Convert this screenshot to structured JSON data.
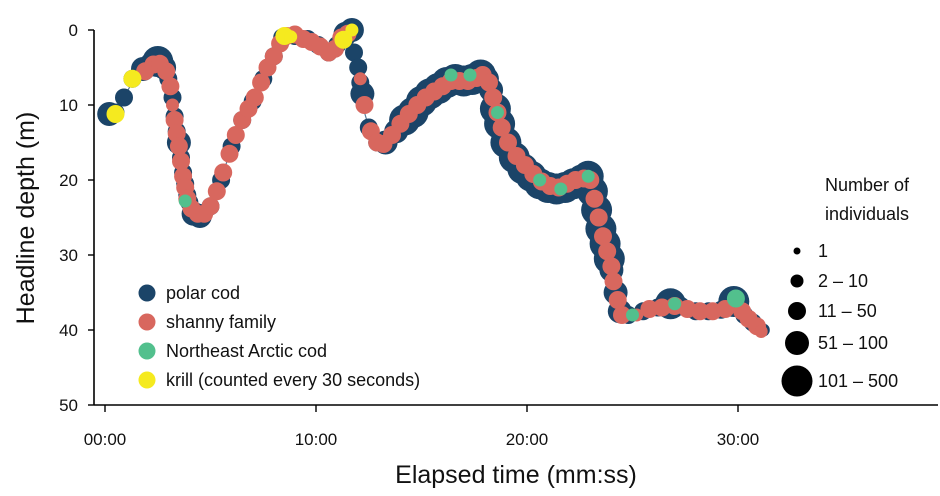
{
  "chart_data": {
    "type": "scatter",
    "xlabel": "Elapsed time (mm:ss)",
    "ylabel": "Headline depth (m)",
    "xlim_minutes": [
      0,
      40
    ],
    "ylim": [
      0,
      50
    ],
    "y_inverted": true,
    "x_ticks": [
      {
        "minutes": 0,
        "label": "00:00"
      },
      {
        "minutes": 10,
        "label": "10:00"
      },
      {
        "minutes": 20,
        "label": "20:00"
      },
      {
        "minutes": 30,
        "label": "30:00"
      }
    ],
    "y_ticks": [
      {
        "value": 0,
        "label": "0"
      },
      {
        "value": 10,
        "label": "10"
      },
      {
        "value": 20,
        "label": "20"
      },
      {
        "value": 30,
        "label": "30"
      },
      {
        "value": 40,
        "label": "40"
      },
      {
        "value": 50,
        "label": "50"
      }
    ],
    "legend": {
      "placement": "bottom-left",
      "entries": [
        {
          "label": "polar cod",
          "color": "#1b4468"
        },
        {
          "label": "shanny family",
          "color": "#d8675e"
        },
        {
          "label": "Northeast Arctic cod",
          "color": "#52c08d"
        },
        {
          "label": "krill (counted every 30 seconds)",
          "color": "#f5ea1f"
        }
      ]
    },
    "size_legend": {
      "title_lines": [
        "Number of",
        "individuals"
      ],
      "placement": "right",
      "entries": [
        {
          "label": "1",
          "size_class": 1
        },
        {
          "label": "2 – 10",
          "size_class": 2
        },
        {
          "label": "11 – 50",
          "size_class": 3
        },
        {
          "label": "51 – 100",
          "size_class": 4
        },
        {
          "label": "101 –  500",
          "size_class": 5
        }
      ]
    },
    "depth_track": [
      [
        0.3,
        11.2
      ],
      [
        0.6,
        11.2
      ],
      [
        1.0,
        8.5
      ],
      [
        1.5,
        5.8
      ],
      [
        2.0,
        4.6
      ],
      [
        2.6,
        4.2
      ],
      [
        3.0,
        6.5
      ],
      [
        3.3,
        11.0
      ],
      [
        3.6,
        17.5
      ],
      [
        3.9,
        22.0
      ],
      [
        4.2,
        24.5
      ],
      [
        4.6,
        24.5
      ],
      [
        5.0,
        23.5
      ],
      [
        5.5,
        20.0
      ],
      [
        6.0,
        15.5
      ],
      [
        6.5,
        12.0
      ],
      [
        7.0,
        9.5
      ],
      [
        7.5,
        6.5
      ],
      [
        8.0,
        3.5
      ],
      [
        8.4,
        1.0
      ],
      [
        9.0,
        0.8
      ],
      [
        9.5,
        1.5
      ],
      [
        10.0,
        2.0
      ],
      [
        10.5,
        3.2
      ],
      [
        11.0,
        2.0
      ],
      [
        11.3,
        0.5
      ],
      [
        11.6,
        0.0
      ],
      [
        12.0,
        5.0
      ],
      [
        12.2,
        10.0
      ],
      [
        12.5,
        13.0
      ],
      [
        13.0,
        15.5
      ],
      [
        13.5,
        14.5
      ],
      [
        14.0,
        12.5
      ],
      [
        14.5,
        11.0
      ],
      [
        15.0,
        9.5
      ],
      [
        15.5,
        8.5
      ],
      [
        16.0,
        7.5
      ],
      [
        16.5,
        6.5
      ],
      [
        17.0,
        6.8
      ],
      [
        17.5,
        6.5
      ],
      [
        18.0,
        6.0
      ],
      [
        18.3,
        8.0
      ],
      [
        18.6,
        11.5
      ],
      [
        19.0,
        15.5
      ],
      [
        19.5,
        17.5
      ],
      [
        20.0,
        18.5
      ],
      [
        20.5,
        20.0
      ],
      [
        21.0,
        21.0
      ],
      [
        21.5,
        21.0
      ],
      [
        22.0,
        20.5
      ],
      [
        22.5,
        20.0
      ],
      [
        22.9,
        19.5
      ],
      [
        23.2,
        22.0
      ],
      [
        23.5,
        26.5
      ],
      [
        23.8,
        29.0
      ],
      [
        24.0,
        31.0
      ],
      [
        24.2,
        35.0
      ],
      [
        24.5,
        38.0
      ],
      [
        25.0,
        38.0
      ],
      [
        25.5,
        37.5
      ],
      [
        26.0,
        37.0
      ],
      [
        26.5,
        36.8
      ],
      [
        27.0,
        36.5
      ],
      [
        27.5,
        37.0
      ],
      [
        28.0,
        37.5
      ],
      [
        28.5,
        37.5
      ],
      [
        29.0,
        37.5
      ],
      [
        29.5,
        37.0
      ],
      [
        30.0,
        36.0
      ],
      [
        30.3,
        38.0
      ],
      [
        30.6,
        39.0
      ],
      [
        31.0,
        40.0
      ],
      [
        31.3,
        40.0
      ]
    ],
    "series": [
      {
        "name": "polar cod",
        "points": [
          [
            0.2,
            11.2,
            4
          ],
          [
            0.5,
            11.0,
            3
          ],
          [
            0.9,
            9.0,
            3
          ],
          [
            1.3,
            6.5,
            3
          ],
          [
            1.8,
            5.2,
            4
          ],
          [
            2.2,
            4.6,
            4
          ],
          [
            2.5,
            4.2,
            5
          ],
          [
            2.8,
            5.0,
            4
          ],
          [
            3.0,
            6.5,
            3
          ],
          [
            3.2,
            9.0,
            3
          ],
          [
            3.3,
            11.5,
            3
          ],
          [
            3.4,
            13.5,
            3
          ],
          [
            3.5,
            15.0,
            4
          ],
          [
            3.6,
            17.0,
            3
          ],
          [
            3.7,
            19.0,
            3
          ],
          [
            3.8,
            20.5,
            3
          ],
          [
            3.9,
            22.0,
            3
          ],
          [
            4.0,
            23.0,
            3
          ],
          [
            4.2,
            24.5,
            4
          ],
          [
            4.5,
            24.8,
            4
          ],
          [
            5.0,
            23.5,
            3
          ],
          [
            5.5,
            20.0,
            3
          ],
          [
            6.0,
            15.5,
            3
          ],
          [
            6.5,
            12.0,
            3
          ],
          [
            7.0,
            9.5,
            3
          ],
          [
            7.5,
            6.5,
            3
          ],
          [
            8.0,
            3.5,
            3
          ],
          [
            8.4,
            1.0,
            3
          ],
          [
            9.0,
            0.8,
            3
          ],
          [
            9.6,
            1.2,
            3
          ],
          [
            10.1,
            2.0,
            3
          ],
          [
            10.6,
            3.0,
            3
          ],
          [
            11.0,
            2.0,
            3
          ],
          [
            11.4,
            0.5,
            4
          ],
          [
            11.7,
            0.0,
            4
          ],
          [
            11.8,
            3.0,
            3
          ],
          [
            12.0,
            5.0,
            3
          ],
          [
            12.1,
            7.0,
            3
          ],
          [
            12.2,
            8.5,
            4
          ],
          [
            12.5,
            13.0,
            3
          ],
          [
            12.9,
            15.0,
            3
          ],
          [
            13.3,
            15.0,
            4
          ],
          [
            13.8,
            13.5,
            4
          ],
          [
            14.2,
            12.0,
            5
          ],
          [
            14.6,
            11.0,
            5
          ],
          [
            15.0,
            9.5,
            5
          ],
          [
            15.4,
            8.5,
            5
          ],
          [
            15.8,
            7.8,
            5
          ],
          [
            16.2,
            7.0,
            5
          ],
          [
            16.6,
            6.6,
            5
          ],
          [
            17.0,
            6.8,
            5
          ],
          [
            17.4,
            6.6,
            5
          ],
          [
            17.8,
            6.0,
            5
          ],
          [
            18.1,
            6.5,
            4
          ],
          [
            18.3,
            8.0,
            4
          ],
          [
            18.5,
            10.5,
            5
          ],
          [
            18.7,
            12.5,
            5
          ],
          [
            19.0,
            15.0,
            5
          ],
          [
            19.4,
            17.0,
            5
          ],
          [
            19.8,
            18.5,
            5
          ],
          [
            20.2,
            19.5,
            5
          ],
          [
            20.6,
            20.5,
            5
          ],
          [
            21.0,
            21.0,
            5
          ],
          [
            21.4,
            21.2,
            5
          ],
          [
            21.8,
            21.0,
            5
          ],
          [
            22.2,
            20.5,
            5
          ],
          [
            22.6,
            20.0,
            5
          ],
          [
            22.9,
            19.5,
            5
          ],
          [
            23.1,
            21.5,
            5
          ],
          [
            23.3,
            24.0,
            5
          ],
          [
            23.5,
            26.5,
            5
          ],
          [
            23.7,
            28.5,
            5
          ],
          [
            23.9,
            30.5,
            5
          ],
          [
            24.0,
            32.0,
            4
          ],
          [
            24.2,
            35.0,
            4
          ],
          [
            24.4,
            37.5,
            4
          ],
          [
            24.8,
            38.0,
            3
          ],
          [
            25.5,
            37.5,
            3
          ],
          [
            26.2,
            37.0,
            3
          ],
          [
            26.8,
            36.5,
            5
          ],
          [
            27.3,
            36.8,
            3
          ],
          [
            28.0,
            37.5,
            3
          ],
          [
            28.6,
            37.5,
            3
          ],
          [
            29.2,
            37.3,
            3
          ],
          [
            29.8,
            36.2,
            5
          ],
          [
            30.3,
            38.0,
            3
          ],
          [
            30.7,
            39.0,
            3
          ],
          [
            31.2,
            40.0,
            2
          ]
        ]
      },
      {
        "name": "shanny family",
        "points": [
          [
            1.9,
            5.5,
            3
          ],
          [
            2.3,
            4.6,
            3
          ],
          [
            2.6,
            4.5,
            3
          ],
          [
            2.9,
            5.5,
            3
          ],
          [
            3.1,
            7.5,
            3
          ],
          [
            3.2,
            10.0,
            2
          ],
          [
            3.3,
            12.0,
            3
          ],
          [
            3.4,
            13.8,
            3
          ],
          [
            3.5,
            15.5,
            3
          ],
          [
            3.6,
            17.5,
            3
          ],
          [
            3.7,
            19.5,
            3
          ],
          [
            3.8,
            21.0,
            3
          ],
          [
            3.9,
            22.5,
            3
          ],
          [
            4.1,
            23.8,
            3
          ],
          [
            4.4,
            24.5,
            3
          ],
          [
            4.7,
            24.5,
            3
          ],
          [
            5.0,
            23.5,
            3
          ],
          [
            5.3,
            21.5,
            3
          ],
          [
            5.6,
            19.0,
            3
          ],
          [
            5.9,
            16.5,
            3
          ],
          [
            6.2,
            14.0,
            3
          ],
          [
            6.5,
            12.0,
            3
          ],
          [
            6.8,
            10.5,
            3
          ],
          [
            7.1,
            9.0,
            3
          ],
          [
            7.4,
            7.0,
            3
          ],
          [
            7.7,
            5.0,
            3
          ],
          [
            8.0,
            3.5,
            3
          ],
          [
            8.3,
            1.8,
            3
          ],
          [
            8.6,
            0.8,
            3
          ],
          [
            9.0,
            0.6,
            3
          ],
          [
            9.4,
            1.2,
            3
          ],
          [
            9.8,
            1.6,
            3
          ],
          [
            10.2,
            2.2,
            3
          ],
          [
            10.6,
            3.0,
            3
          ],
          [
            10.9,
            2.5,
            3
          ],
          [
            11.2,
            1.0,
            3
          ],
          [
            11.5,
            0.5,
            3
          ],
          [
            12.1,
            6.5,
            2
          ],
          [
            12.3,
            10.0,
            3
          ],
          [
            12.6,
            13.5,
            3
          ],
          [
            12.9,
            15.0,
            3
          ],
          [
            13.2,
            15.2,
            3
          ],
          [
            13.6,
            14.0,
            3
          ],
          [
            14.0,
            12.5,
            3
          ],
          [
            14.4,
            11.2,
            3
          ],
          [
            14.8,
            10.0,
            3
          ],
          [
            15.2,
            9.0,
            3
          ],
          [
            15.6,
            8.2,
            3
          ],
          [
            16.0,
            7.5,
            3
          ],
          [
            16.4,
            6.8,
            3
          ],
          [
            16.8,
            6.8,
            3
          ],
          [
            17.2,
            6.8,
            3
          ],
          [
            17.6,
            6.4,
            3
          ],
          [
            17.9,
            6.0,
            3
          ],
          [
            18.2,
            7.0,
            3
          ],
          [
            18.4,
            9.0,
            3
          ],
          [
            18.6,
            11.0,
            3
          ],
          [
            18.8,
            13.0,
            3
          ],
          [
            19.1,
            15.0,
            3
          ],
          [
            19.5,
            16.8,
            3
          ],
          [
            19.9,
            18.0,
            3
          ],
          [
            20.3,
            19.2,
            3
          ],
          [
            20.7,
            20.2,
            3
          ],
          [
            21.1,
            20.8,
            3
          ],
          [
            21.5,
            21.0,
            3
          ],
          [
            21.9,
            20.5,
            3
          ],
          [
            22.3,
            20.0,
            3
          ],
          [
            22.7,
            19.8,
            3
          ],
          [
            23.0,
            20.0,
            3
          ],
          [
            23.2,
            22.5,
            3
          ],
          [
            23.4,
            25.0,
            3
          ],
          [
            23.6,
            27.5,
            3
          ],
          [
            23.8,
            29.5,
            3
          ],
          [
            24.0,
            31.5,
            3
          ],
          [
            24.1,
            33.5,
            3
          ],
          [
            24.3,
            36.0,
            3
          ],
          [
            24.5,
            38.0,
            3
          ],
          [
            25.2,
            38.0,
            2
          ],
          [
            25.8,
            37.2,
            3
          ],
          [
            26.4,
            37.0,
            3
          ],
          [
            27.0,
            36.8,
            3
          ],
          [
            27.6,
            37.2,
            3
          ],
          [
            28.2,
            37.5,
            3
          ],
          [
            28.8,
            37.5,
            3
          ],
          [
            29.4,
            37.2,
            3
          ],
          [
            30.2,
            37.5,
            3
          ],
          [
            30.5,
            38.5,
            3
          ],
          [
            30.9,
            39.5,
            3
          ],
          [
            31.1,
            40.2,
            2
          ]
        ]
      },
      {
        "name": "Northeast Arctic cod",
        "points": [
          [
            3.8,
            22.8,
            2
          ],
          [
            16.4,
            6.0,
            2
          ],
          [
            17.3,
            6.0,
            2
          ],
          [
            18.6,
            11.0,
            2
          ],
          [
            20.6,
            20.0,
            2
          ],
          [
            21.6,
            21.2,
            2
          ],
          [
            22.9,
            19.5,
            2
          ],
          [
            25.0,
            38.0,
            2
          ],
          [
            27.0,
            36.5,
            2
          ],
          [
            29.9,
            35.8,
            3
          ]
        ]
      },
      {
        "name": "krill (counted every 30 seconds)",
        "points": [
          [
            0.5,
            11.2,
            3
          ],
          [
            1.3,
            6.5,
            3
          ],
          [
            8.5,
            0.8,
            3
          ],
          [
            8.8,
            0.9,
            2
          ],
          [
            11.3,
            1.3,
            3
          ],
          [
            11.7,
            0.0,
            2
          ]
        ]
      }
    ]
  }
}
